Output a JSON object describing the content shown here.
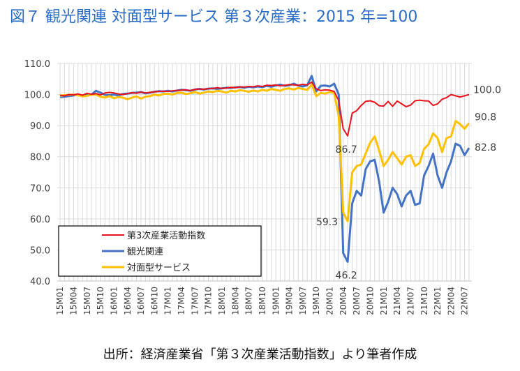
{
  "title": "図７ 観光関連 対面型サービス 第３次産業：2015 年=100",
  "source": "出所：経済産業省「第３次産業活動指数」より筆者作成",
  "chart_data": {
    "type": "line",
    "ylim": [
      40,
      110
    ],
    "yticks": [
      "110.0",
      "100.0",
      "90.0",
      "80.0",
      "70.0",
      "60.0",
      "50.0",
      "40.0"
    ],
    "ytick_values": [
      110,
      100,
      90,
      80,
      70,
      60,
      50,
      40
    ],
    "grid": true,
    "legend_position": "bottom-left",
    "x": [
      "15M01",
      "15M02",
      "15M03",
      "15M04",
      "15M05",
      "15M06",
      "15M07",
      "15M08",
      "15M09",
      "15M10",
      "15M11",
      "15M12",
      "16M01",
      "16M02",
      "16M03",
      "16M04",
      "16M05",
      "16M06",
      "16M07",
      "16M08",
      "16M09",
      "16M10",
      "16M11",
      "16M12",
      "17M01",
      "17M02",
      "17M03",
      "17M04",
      "17M05",
      "17M06",
      "17M07",
      "17M08",
      "17M09",
      "17M10",
      "17M11",
      "17M12",
      "18M01",
      "18M02",
      "18M03",
      "18M04",
      "18M05",
      "18M06",
      "18M07",
      "18M08",
      "18M09",
      "18M10",
      "18M11",
      "18M12",
      "19M01",
      "19M02",
      "19M03",
      "19M04",
      "19M05",
      "19M06",
      "19M07",
      "19M08",
      "19M09",
      "19M10",
      "19M11",
      "19M12",
      "20M01",
      "20M02",
      "20M03",
      "20M04",
      "20M05",
      "20M06",
      "20M07",
      "20M08",
      "20M09",
      "20M10",
      "20M11",
      "20M12",
      "21M01",
      "21M02",
      "21M03",
      "21M04",
      "21M05",
      "21M06",
      "21M07",
      "21M08",
      "21M09",
      "21M10",
      "21M11",
      "21M12",
      "22M01",
      "22M02",
      "22M03",
      "22M04",
      "22M05",
      "22M06",
      "22M07",
      "22M08"
    ],
    "xtick_labels": [
      "15M01",
      "15M04",
      "15M07",
      "15M10",
      "16M01",
      "16M04",
      "16M07",
      "16M10",
      "17M01",
      "17M04",
      "17M07",
      "17M10",
      "18M01",
      "18M04",
      "18M07",
      "18M10",
      "19M01",
      "19M04",
      "19M07",
      "19M10",
      "20M01",
      "20M04",
      "20M07",
      "20M10",
      "21M01",
      "21M04",
      "21M07",
      "21M10",
      "22M01",
      "22M04",
      "22M07"
    ],
    "series": [
      {
        "name": "第3次産業活動指数",
        "color": "#e8121a",
        "width": 2,
        "values": [
          99.8,
          99.6,
          100.0,
          99.9,
          100.2,
          99.8,
          100.4,
          100.1,
          100.3,
          99.9,
          100.5,
          100.7,
          100.5,
          100.2,
          100.0,
          100.3,
          100.6,
          100.4,
          100.8,
          100.5,
          100.7,
          100.9,
          101.0,
          101.1,
          101.0,
          101.2,
          101.3,
          101.4,
          101.5,
          101.3,
          101.6,
          101.8,
          101.7,
          101.9,
          102.0,
          102.2,
          102.0,
          102.1,
          102.3,
          102.2,
          102.5,
          102.4,
          102.6,
          102.5,
          102.8,
          102.6,
          103.0,
          102.9,
          103.1,
          102.8,
          103.0,
          103.2,
          103.1,
          103.0,
          103.3,
          103.1,
          104.0,
          101.8,
          101.3,
          101.5,
          101.4,
          101.0,
          98.0,
          89.0,
          86.7,
          94.0,
          94.8,
          96.5,
          97.8,
          98.0,
          97.5,
          96.4,
          96.3,
          97.8,
          96.2,
          97.9,
          97.0,
          96.1,
          96.6,
          98.0,
          98.2,
          98.0,
          97.9,
          96.5,
          97.0,
          98.5,
          99.0,
          100.0,
          99.6,
          99.2,
          99.6,
          100.0
        ]
      },
      {
        "name": "観光関連",
        "color": "#4472c4",
        "width": 3,
        "values": [
          99.2,
          99.3,
          99.5,
          99.7,
          100.0,
          99.6,
          100.1,
          100.0,
          101.2,
          100.6,
          99.9,
          99.8,
          100.0,
          99.7,
          100.2,
          100.3,
          100.5,
          100.6,
          100.8,
          100.4,
          100.6,
          100.9,
          101.1,
          101.0,
          101.2,
          101.0,
          101.3,
          101.5,
          101.4,
          101.2,
          101.6,
          101.8,
          101.6,
          101.9,
          102.0,
          101.8,
          102.0,
          102.2,
          102.1,
          102.3,
          102.4,
          102.2,
          102.5,
          102.3,
          102.6,
          102.4,
          102.8,
          102.5,
          102.9,
          103.2,
          102.8,
          103.0,
          103.5,
          102.9,
          102.6,
          103.0,
          106.0,
          101.0,
          102.8,
          102.9,
          102.6,
          103.5,
          100.0,
          49.0,
          46.2,
          65.0,
          69.0,
          67.5,
          76.0,
          78.5,
          79.0,
          72.0,
          62.0,
          65.5,
          70.0,
          68.0,
          64.0,
          67.5,
          69.0,
          64.5,
          65.0,
          74.0,
          77.0,
          81.0,
          74.0,
          70.0,
          75.0,
          78.5,
          84.2,
          83.5,
          80.5,
          82.8
        ]
      },
      {
        "name": "対面型サービス",
        "color": "#ffc000",
        "width": 3,
        "values": [
          99.6,
          99.8,
          99.9,
          100.0,
          99.8,
          99.4,
          99.6,
          99.9,
          100.0,
          99.3,
          99.0,
          99.5,
          98.8,
          99.2,
          99.0,
          98.5,
          99.0,
          99.4,
          98.7,
          99.3,
          99.5,
          100.0,
          99.7,
          100.2,
          100.3,
          100.0,
          100.5,
          100.6,
          100.2,
          100.4,
          100.8,
          100.3,
          100.6,
          101.0,
          100.8,
          101.2,
          101.0,
          100.6,
          101.2,
          101.0,
          101.4,
          101.2,
          100.9,
          101.3,
          101.0,
          101.5,
          101.2,
          101.8,
          101.5,
          101.2,
          101.8,
          102.0,
          101.6,
          102.1,
          101.8,
          101.5,
          103.2,
          99.5,
          100.5,
          100.3,
          100.8,
          100.5,
          93.0,
          62.0,
          59.3,
          75.0,
          77.0,
          77.5,
          81.0,
          84.5,
          86.5,
          82.0,
          77.0,
          79.0,
          81.5,
          79.5,
          77.5,
          80.0,
          80.5,
          77.0,
          78.0,
          82.5,
          84.0,
          87.5,
          86.0,
          81.5,
          86.0,
          86.5,
          91.5,
          90.5,
          89.0,
          90.8
        ]
      }
    ],
    "annotations": [
      {
        "text": "100.0",
        "series": 0,
        "index": 91,
        "anchor": "end-right"
      },
      {
        "text": "90.8",
        "series": 2,
        "index": 91,
        "anchor": "above-right"
      },
      {
        "text": "82.8",
        "series": 1,
        "index": 91,
        "anchor": "right"
      },
      {
        "text": "86.7",
        "series": 0,
        "index": 64,
        "anchor": "below"
      },
      {
        "text": "59.3",
        "series": 2,
        "index": 64,
        "anchor": "left"
      },
      {
        "text": "46.2",
        "series": 1,
        "index": 64,
        "anchor": "below"
      }
    ]
  }
}
